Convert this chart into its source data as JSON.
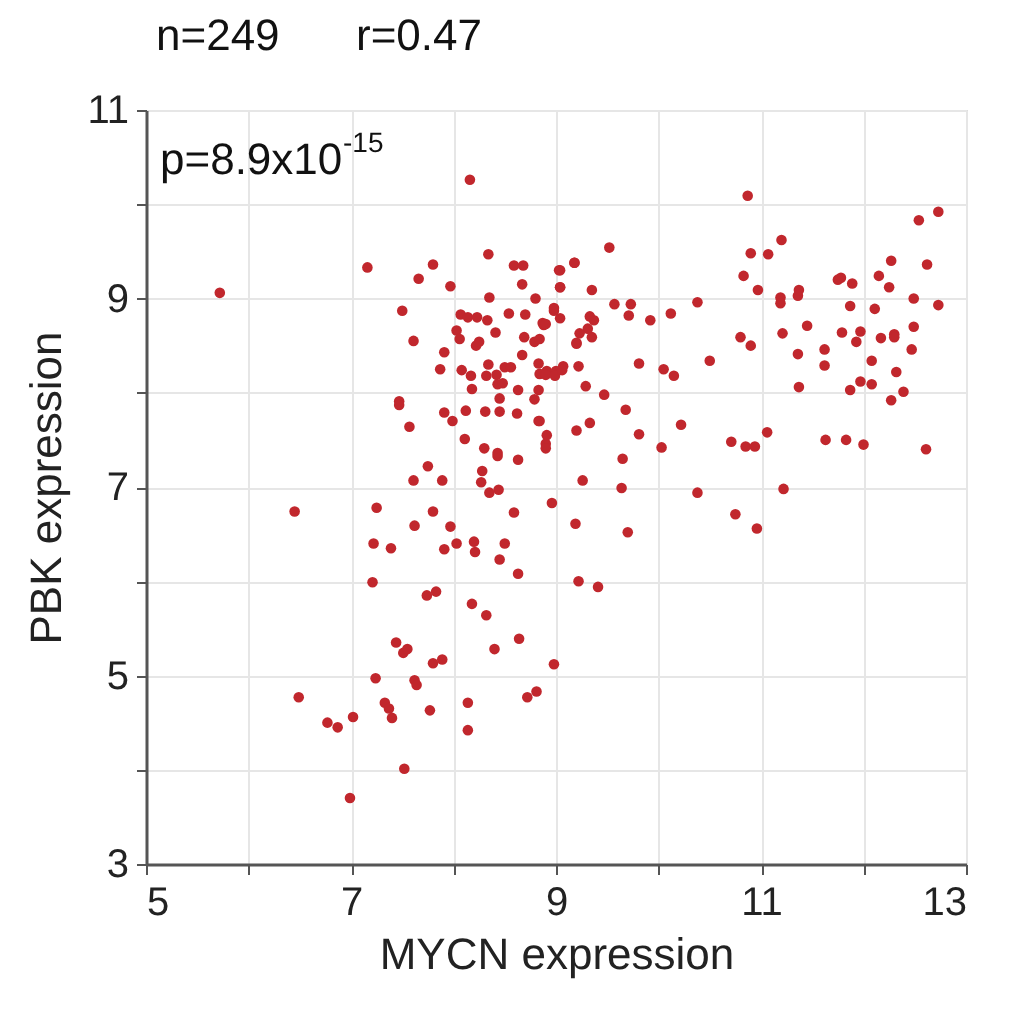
{
  "chart_data": {
    "type": "scatter",
    "xlabel": "MYCN expression",
    "ylabel": "PBK expression",
    "annotations": [
      "n=249",
      "r=0.47",
      "p=8.9x10$^{-15}$"
    ],
    "xlim": [
      5,
      13
    ],
    "ylim": [
      3,
      11
    ],
    "xticks": [
      5,
      {
        "value": 6,
        "label": null
      },
      7,
      {
        "value": 8,
        "label": null
      },
      9,
      {
        "value": 10,
        "label": null
      },
      11,
      {
        "value": 12,
        "label": null
      },
      13
    ],
    "yticks": [
      3,
      {
        "value": 4,
        "label": null
      },
      5,
      {
        "value": 6,
        "label": null
      },
      7,
      {
        "value": 8,
        "label": null
      },
      9,
      {
        "value": 10,
        "label": null
      },
      11
    ],
    "grid": true,
    "marker": "circle",
    "series": [
      {
        "color": "#c1272d",
        "x": [
          5.72,
          8.16,
          7.16,
          7.8,
          8.34,
          8.59,
          8.68,
          7.66,
          7.97,
          8.35,
          8.67,
          9.03,
          9.18,
          9.04,
          8.8,
          7.5,
          8.07,
          8.14,
          8.23,
          8.33,
          8.54,
          8.7,
          8.98,
          8.88,
          8.03,
          8.06,
          8.41,
          8.69,
          7.61,
          8.22,
          8.25,
          8.79,
          8.84,
          9.2,
          7.91,
          8.67,
          7.87,
          8.08,
          8.34,
          8.42,
          8.5,
          8.56,
          8.83,
          8.91,
          9.0,
          9.07,
          9.22,
          8.17,
          8.32,
          8.43,
          8.48,
          8.63,
          8.83,
          7.47,
          7.47,
          8.18,
          8.45,
          7.91,
          7.99,
          8.12,
          8.31,
          8.45,
          8.62,
          8.79,
          8.83,
          7.57,
          8.11,
          8.3,
          8.43,
          8.43,
          8.63,
          8.9,
          8.9,
          9.2,
          7.75,
          8.28,
          7.61,
          7.89,
          8.27,
          8.44,
          8.35,
          10.87,
          12.54,
          12.73,
          9.52,
          9.04,
          9.18,
          9.04,
          9.35,
          10.9,
          11.07,
          11.2,
          10.83,
          10.97,
          11.19,
          11.19,
          11.36,
          11.37,
          10.38,
          11.75,
          11.78,
          11.89,
          12.15,
          12.27,
          12.25,
          12.62,
          12.49,
          12.73,
          8.98,
          8.87,
          8.9,
          9.04,
          9.33,
          9.37,
          9.31,
          9.23,
          9.2,
          9.35,
          9.57,
          9.73,
          9.71,
          9.92,
          10.12,
          11.87,
          12.11,
          11.45,
          11.21,
          11.79,
          11.97,
          11.93,
          12.17,
          12.3,
          12.3,
          12.49,
          10.8,
          10.9,
          11.36,
          11.62,
          11.62,
          12.47,
          12.08,
          12.32,
          11.87,
          11.97,
          12.08,
          12.27,
          12.39,
          11.37,
          10.5,
          9.81,
          10.05,
          10.15,
          8.84,
          8.9,
          8.99,
          9.06,
          9.29,
          9.47,
          9.68,
          8.84,
          8.91,
          9.33,
          9.81,
          10.22,
          10.03,
          9.65,
          10.71,
          10.85,
          10.94,
          11.06,
          11.63,
          11.83,
          12.0,
          12.61,
          9.26,
          9.64,
          10.38,
          11.22,
          6.45,
          7.25,
          7.8,
          7.62,
          7.97,
          7.22,
          7.39,
          7.91,
          8.03,
          8.2,
          8.21,
          8.5,
          8.45,
          8.59,
          8.96,
          9.19,
          8.63,
          9.22,
          7.21,
          7.74,
          7.83,
          8.18,
          8.32,
          7.44,
          7.51,
          7.55,
          7.8,
          7.89,
          8.4,
          8.64,
          8.98,
          7.24,
          7.62,
          7.64,
          6.49,
          7.33,
          7.37,
          7.4,
          6.77,
          6.87,
          7.02,
          7.77,
          8.14,
          8.14,
          8.72,
          8.81,
          7.52,
          6.99,
          9.7,
          10.75,
          10.96,
          9.41
        ],
        "values": [
          9.06,
          10.26,
          9.33,
          9.36,
          9.47,
          9.35,
          9.35,
          9.21,
          9.13,
          9.01,
          9.15,
          9.3,
          9.38,
          9.12,
          9.0,
          8.87,
          8.83,
          8.8,
          8.8,
          8.77,
          8.84,
          8.83,
          8.87,
          8.72,
          8.66,
          8.57,
          8.64,
          8.59,
          8.55,
          8.5,
          8.54,
          8.54,
          8.57,
          8.52,
          8.43,
          8.4,
          8.25,
          8.24,
          8.3,
          8.19,
          8.27,
          8.27,
          8.31,
          8.23,
          8.23,
          8.28,
          8.28,
          8.18,
          8.18,
          8.09,
          8.1,
          8.03,
          8.03,
          7.91,
          7.87,
          8.04,
          7.94,
          7.79,
          7.7,
          7.81,
          7.8,
          7.8,
          7.78,
          7.93,
          7.7,
          7.64,
          7.51,
          7.41,
          7.33,
          7.36,
          7.29,
          7.46,
          7.41,
          7.6,
          7.22,
          7.17,
          7.07,
          7.07,
          7.05,
          6.97,
          6.94,
          10.09,
          9.83,
          9.92,
          9.54,
          9.3,
          9.38,
          9.12,
          9.09,
          9.48,
          9.47,
          9.62,
          9.24,
          9.09,
          9.01,
          8.95,
          9.03,
          9.09,
          8.96,
          9.2,
          9.22,
          9.16,
          9.24,
          9.4,
          9.12,
          9.36,
          9.0,
          8.93,
          8.9,
          8.74,
          8.73,
          8.79,
          8.81,
          8.77,
          8.68,
          8.63,
          8.53,
          8.59,
          8.94,
          8.94,
          8.82,
          8.77,
          8.84,
          8.92,
          8.89,
          8.71,
          8.63,
          8.64,
          8.65,
          8.54,
          8.58,
          8.62,
          8.59,
          8.7,
          8.59,
          8.5,
          8.41,
          8.46,
          8.29,
          8.46,
          8.34,
          8.22,
          8.03,
          8.12,
          8.09,
          7.92,
          8.01,
          8.06,
          8.34,
          8.31,
          8.25,
          8.18,
          8.2,
          8.19,
          8.18,
          8.24,
          8.07,
          7.98,
          7.82,
          7.7,
          7.55,
          7.68,
          7.56,
          7.66,
          7.42,
          7.3,
          7.48,
          7.43,
          7.43,
          7.58,
          7.5,
          7.5,
          7.45,
          7.4,
          7.07,
          6.99,
          6.94,
          6.98,
          6.74,
          6.78,
          6.74,
          6.59,
          6.58,
          6.4,
          6.35,
          6.34,
          6.4,
          6.42,
          6.31,
          6.4,
          6.23,
          6.73,
          6.83,
          6.61,
          6.08,
          6.0,
          5.99,
          5.85,
          5.89,
          5.76,
          5.64,
          5.35,
          5.24,
          5.28,
          5.13,
          5.17,
          5.28,
          5.39,
          5.12,
          4.97,
          4.95,
          4.9,
          4.77,
          4.71,
          4.65,
          4.55,
          4.5,
          4.45,
          4.56,
          4.63,
          4.71,
          4.42,
          4.77,
          4.83,
          4.01,
          3.7,
          6.52,
          6.71,
          6.56,
          5.94
        ]
      }
    ]
  }
}
